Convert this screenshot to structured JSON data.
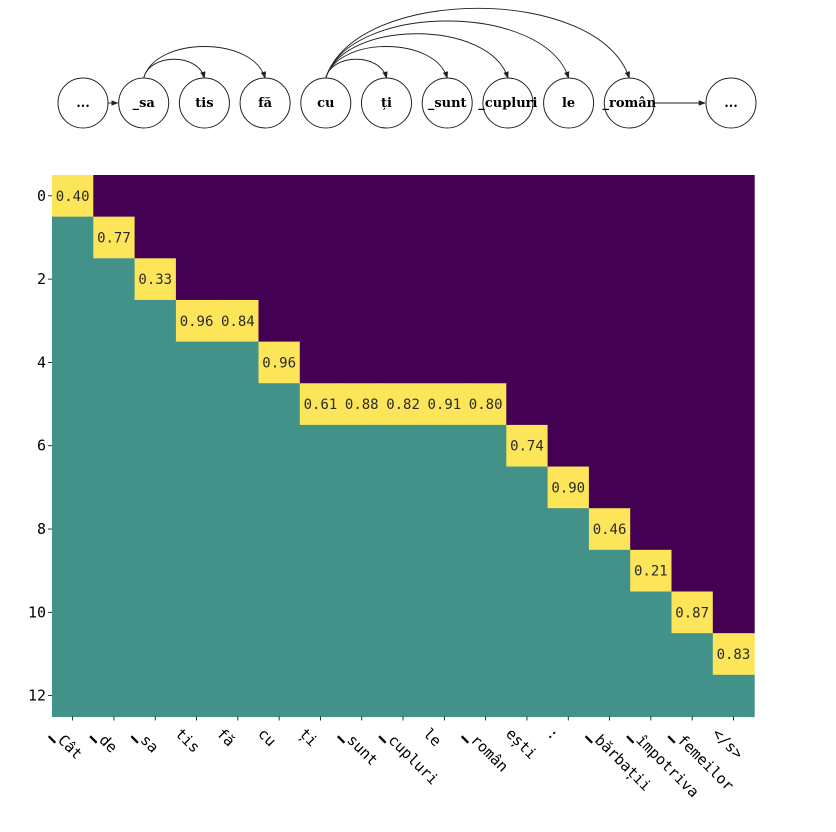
{
  "diagram": {
    "nodes": [
      "...",
      "_sa",
      "tis",
      "fă",
      "cu",
      "ți",
      "_sunt",
      "_cupluri",
      "le",
      "_român",
      "..."
    ],
    "edges": [
      [
        0,
        1
      ],
      [
        9,
        10
      ]
    ],
    "arcs": [
      [
        1,
        2
      ],
      [
        1,
        3
      ],
      [
        4,
        5
      ],
      [
        4,
        6
      ],
      [
        4,
        7
      ],
      [
        4,
        8
      ],
      [
        4,
        9
      ]
    ]
  },
  "chart_data": {
    "type": "heatmap",
    "title": "",
    "xlabel": "",
    "ylabel": "",
    "x_labels": [
      "▁Cât",
      "▁de",
      "▁sa",
      "tis",
      "fă",
      "cu",
      "ți",
      "▁sunt",
      "▁cupluri",
      "le",
      "▁român",
      "ești",
      ":",
      "▁bărbații",
      "▁împotriva",
      "▁femeilor",
      "</s>"
    ],
    "y_ticks": [
      0,
      2,
      4,
      6,
      8,
      10,
      12
    ],
    "n_rows": 13,
    "colors": {
      "upper": "#440154",
      "lower": "#42928a",
      "highlight": "#fde55a"
    },
    "highlighted_cells": [
      {
        "row": 0,
        "col": 0,
        "value": "0.40"
      },
      {
        "row": 1,
        "col": 1,
        "value": "0.77"
      },
      {
        "row": 2,
        "col": 2,
        "value": "0.33"
      },
      {
        "row": 3,
        "col": 3,
        "value": "0.96"
      },
      {
        "row": 3,
        "col": 4,
        "value": "0.84"
      },
      {
        "row": 4,
        "col": 5,
        "value": "0.96"
      },
      {
        "row": 5,
        "col": 6,
        "value": "0.61"
      },
      {
        "row": 5,
        "col": 7,
        "value": "0.88"
      },
      {
        "row": 5,
        "col": 8,
        "value": "0.82"
      },
      {
        "row": 5,
        "col": 9,
        "value": "0.91"
      },
      {
        "row": 5,
        "col": 10,
        "value": "0.80"
      },
      {
        "row": 6,
        "col": 11,
        "value": "0.74"
      },
      {
        "row": 7,
        "col": 12,
        "value": "0.90"
      },
      {
        "row": 8,
        "col": 13,
        "value": "0.46"
      },
      {
        "row": 9,
        "col": 14,
        "value": "0.21"
      },
      {
        "row": 10,
        "col": 15,
        "value": "0.87"
      },
      {
        "row": 11,
        "col": 16,
        "value": "0.83"
      }
    ]
  }
}
